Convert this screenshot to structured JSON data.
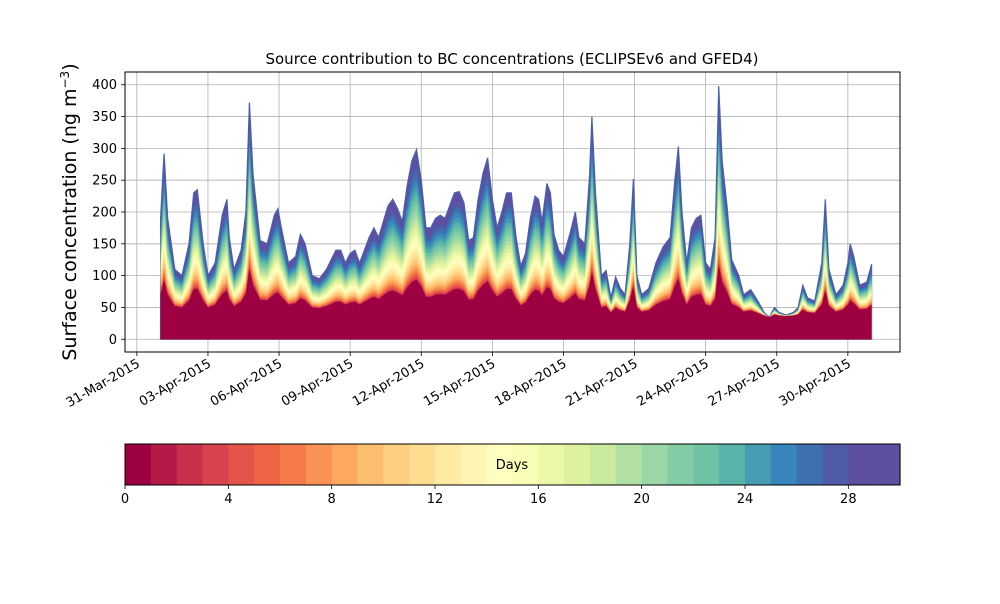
{
  "chart_data": {
    "type": "area",
    "title": "Source contribution to BC concentrations (ECLIPSEv6 and GFED4)",
    "ylabel_main": "Surface concentration (ng m",
    "ylabel_sup": "−3",
    "ylabel_close": ")",
    "xlabel": "",
    "ylim": [
      -20,
      420
    ],
    "yticks": [
      0,
      50,
      100,
      150,
      200,
      250,
      300,
      350,
      400
    ],
    "x_date_ticks": [
      {
        "day": -1,
        "label": "31-Mar-2015"
      },
      {
        "day": 2,
        "label": "03-Apr-2015"
      },
      {
        "day": 5,
        "label": "06-Apr-2015"
      },
      {
        "day": 8,
        "label": "09-Apr-2015"
      },
      {
        "day": 11,
        "label": "12-Apr-2015"
      },
      {
        "day": 14,
        "label": "15-Apr-2015"
      },
      {
        "day": 17,
        "label": "18-Apr-2015"
      },
      {
        "day": 20,
        "label": "21-Apr-2015"
      },
      {
        "day": 23,
        "label": "24-Apr-2015"
      },
      {
        "day": 26,
        "label": "27-Apr-2015"
      },
      {
        "day": 29,
        "label": "30-Apr-2015"
      }
    ],
    "xlim_days": [
      -1.5,
      31.2
    ],
    "grid": true,
    "series_total": {
      "name": "total",
      "points": [
        [
          0.0,
          190
        ],
        [
          0.1,
          260
        ],
        [
          0.15,
          292
        ],
        [
          0.3,
          190
        ],
        [
          0.6,
          110
        ],
        [
          0.9,
          100
        ],
        [
          1.2,
          150
        ],
        [
          1.4,
          230
        ],
        [
          1.55,
          235
        ],
        [
          1.8,
          150
        ],
        [
          2.0,
          100
        ],
        [
          2.3,
          120
        ],
        [
          2.6,
          195
        ],
        [
          2.8,
          220
        ],
        [
          2.9,
          160
        ],
        [
          3.1,
          110
        ],
        [
          3.4,
          140
        ],
        [
          3.6,
          200
        ],
        [
          3.75,
          372
        ],
        [
          3.9,
          260
        ],
        [
          4.2,
          155
        ],
        [
          4.5,
          150
        ],
        [
          4.8,
          195
        ],
        [
          4.95,
          205
        ],
        [
          5.1,
          175
        ],
        [
          5.4,
          120
        ],
        [
          5.7,
          130
        ],
        [
          5.9,
          165
        ],
        [
          6.1,
          150
        ],
        [
          6.4,
          100
        ],
        [
          6.7,
          95
        ],
        [
          7.0,
          110
        ],
        [
          7.2,
          125
        ],
        [
          7.4,
          140
        ],
        [
          7.6,
          140
        ],
        [
          7.8,
          120
        ],
        [
          8.0,
          135
        ],
        [
          8.2,
          140
        ],
        [
          8.4,
          120
        ],
        [
          8.6,
          140
        ],
        [
          8.8,
          160
        ],
        [
          9.0,
          175
        ],
        [
          9.2,
          160
        ],
        [
          9.4,
          185
        ],
        [
          9.6,
          210
        ],
        [
          9.8,
          220
        ],
        [
          10.0,
          205
        ],
        [
          10.2,
          185
        ],
        [
          10.4,
          240
        ],
        [
          10.6,
          280
        ],
        [
          10.8,
          298
        ],
        [
          11.0,
          250
        ],
        [
          11.2,
          175
        ],
        [
          11.4,
          175
        ],
        [
          11.6,
          190
        ],
        [
          11.8,
          195
        ],
        [
          12.0,
          190
        ],
        [
          12.2,
          210
        ],
        [
          12.4,
          230
        ],
        [
          12.6,
          232
        ],
        [
          12.8,
          215
        ],
        [
          13.0,
          155
        ],
        [
          13.2,
          160
        ],
        [
          13.4,
          220
        ],
        [
          13.6,
          260
        ],
        [
          13.8,
          285
        ],
        [
          14.0,
          220
        ],
        [
          14.2,
          175
        ],
        [
          14.4,
          200
        ],
        [
          14.6,
          230
        ],
        [
          14.8,
          230
        ],
        [
          15.0,
          160
        ],
        [
          15.2,
          115
        ],
        [
          15.4,
          135
        ],
        [
          15.6,
          190
        ],
        [
          15.8,
          225
        ],
        [
          15.95,
          220
        ],
        [
          16.1,
          185
        ],
        [
          16.3,
          245
        ],
        [
          16.45,
          230
        ],
        [
          16.6,
          165
        ],
        [
          16.8,
          140
        ],
        [
          17.0,
          130
        ],
        [
          17.3,
          170
        ],
        [
          17.5,
          200
        ],
        [
          17.65,
          160
        ],
        [
          17.9,
          150
        ],
        [
          18.1,
          255
        ],
        [
          18.2,
          350
        ],
        [
          18.35,
          230
        ],
        [
          18.6,
          100
        ],
        [
          18.8,
          108
        ],
        [
          19.0,
          65
        ],
        [
          19.2,
          98
        ],
        [
          19.4,
          80
        ],
        [
          19.6,
          70
        ],
        [
          19.8,
          150
        ],
        [
          19.95,
          252
        ],
        [
          20.1,
          100
        ],
        [
          20.3,
          70
        ],
        [
          20.6,
          80
        ],
        [
          20.9,
          120
        ],
        [
          21.2,
          145
        ],
        [
          21.5,
          160
        ],
        [
          21.7,
          250
        ],
        [
          21.85,
          303
        ],
        [
          22.0,
          200
        ],
        [
          22.2,
          120
        ],
        [
          22.4,
          175
        ],
        [
          22.6,
          190
        ],
        [
          22.8,
          195
        ],
        [
          23.0,
          120
        ],
        [
          23.2,
          110
        ],
        [
          23.4,
          160
        ],
        [
          23.55,
          398
        ],
        [
          23.7,
          280
        ],
        [
          23.9,
          210
        ],
        [
          24.1,
          125
        ],
        [
          24.4,
          100
        ],
        [
          24.6,
          70
        ],
        [
          24.9,
          78
        ],
        [
          25.2,
          60
        ],
        [
          25.5,
          40
        ],
        [
          25.7,
          35
        ],
        [
          25.9,
          50
        ],
        [
          26.1,
          42
        ],
        [
          26.4,
          38
        ],
        [
          26.7,
          42
        ],
        [
          26.9,
          50
        ],
        [
          27.1,
          85
        ],
        [
          27.3,
          65
        ],
        [
          27.6,
          60
        ],
        [
          27.9,
          120
        ],
        [
          28.05,
          220
        ],
        [
          28.2,
          110
        ],
        [
          28.5,
          70
        ],
        [
          28.8,
          85
        ],
        [
          29.0,
          120
        ],
        [
          29.1,
          150
        ],
        [
          29.25,
          130
        ],
        [
          29.5,
          85
        ],
        [
          29.8,
          90
        ],
        [
          30.0,
          118
        ]
      ]
    },
    "colorbar": {
      "label": "Days",
      "vmin": 0,
      "vmax": 30,
      "ticks": [
        0,
        4,
        8,
        12,
        16,
        20,
        24,
        28
      ],
      "colors": [
        "#9e0142",
        "#b41947",
        "#c8304c",
        "#d8434e",
        "#e45449",
        "#ee6445",
        "#f57a4a",
        "#f99355",
        "#fca95f",
        "#fdbe6f",
        "#fecf80",
        "#fedd91",
        "#ffeaa1",
        "#fff4b1",
        "#fffec0",
        "#f8fcb4",
        "#edf8a7",
        "#def29e",
        "#c9e99e",
        "#b2e0a2",
        "#9bd7a4",
        "#82cda5",
        "#6dc3a4",
        "#59b3a9",
        "#469cb0",
        "#3886bb",
        "#3e6fb1",
        "#4f5ba8",
        "#5e4fa2",
        "#5e4fa2"
      ]
    }
  }
}
